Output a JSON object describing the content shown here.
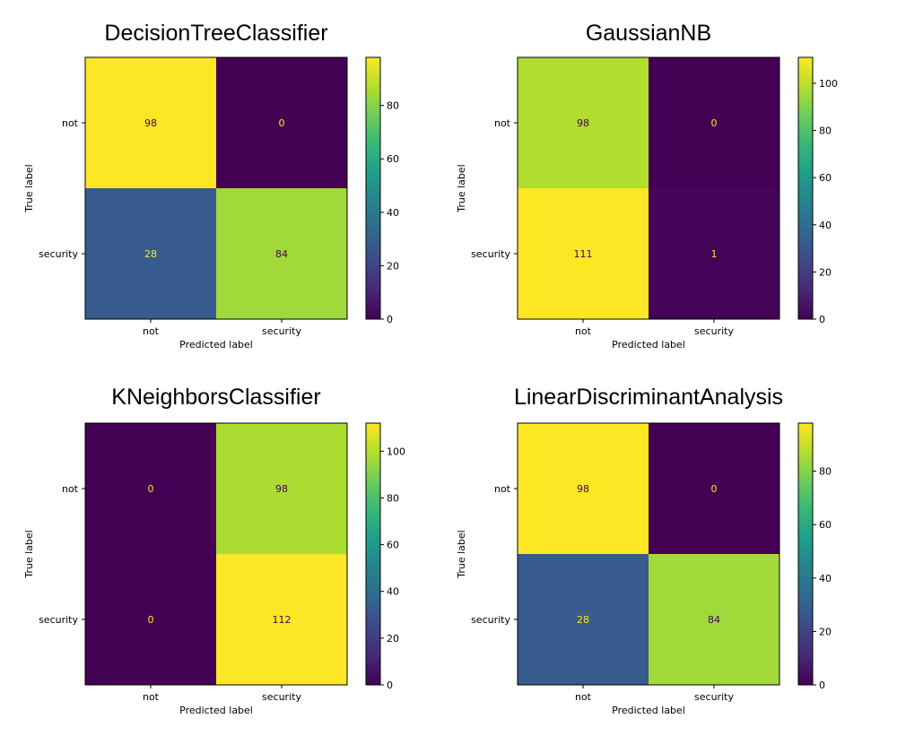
{
  "chart_data": [
    {
      "type": "heatmap",
      "title": "DecisionTreeClassifier",
      "xlabel": "Predicted label",
      "ylabel": "True label",
      "x_categories": [
        "not",
        "security"
      ],
      "y_categories": [
        "not",
        "security"
      ],
      "values": [
        [
          98,
          0
        ],
        [
          28,
          84
        ]
      ],
      "colormap": "viridis",
      "colorbar_range": [
        0,
        98
      ],
      "colorbar_ticks": [
        0,
        20,
        40,
        60,
        80
      ]
    },
    {
      "type": "heatmap",
      "title": "GaussianNB",
      "xlabel": "Predicted label",
      "ylabel": "True label",
      "x_categories": [
        "not",
        "security"
      ],
      "y_categories": [
        "not",
        "security"
      ],
      "values": [
        [
          98,
          0
        ],
        [
          111,
          1
        ]
      ],
      "colormap": "viridis",
      "colorbar_range": [
        0,
        111
      ],
      "colorbar_ticks": [
        0,
        20,
        40,
        60,
        80,
        100
      ]
    },
    {
      "type": "heatmap",
      "title": "KNeighborsClassifier",
      "xlabel": "Predicted label",
      "ylabel": "True label",
      "x_categories": [
        "not",
        "security"
      ],
      "y_categories": [
        "not",
        "security"
      ],
      "values": [
        [
          0,
          98
        ],
        [
          0,
          112
        ]
      ],
      "colormap": "viridis",
      "colorbar_range": [
        0,
        112
      ],
      "colorbar_ticks": [
        0,
        20,
        40,
        60,
        80,
        100
      ]
    },
    {
      "type": "heatmap",
      "title": "LinearDiscriminantAnalysis",
      "xlabel": "Predicted label",
      "ylabel": "True label",
      "x_categories": [
        "not",
        "security"
      ],
      "y_categories": [
        "not",
        "security"
      ],
      "values": [
        [
          98,
          0
        ],
        [
          28,
          84
        ]
      ],
      "colormap": "viridis",
      "colorbar_range": [
        0,
        98
      ],
      "colorbar_ticks": [
        0,
        20,
        40,
        60,
        80
      ]
    }
  ]
}
